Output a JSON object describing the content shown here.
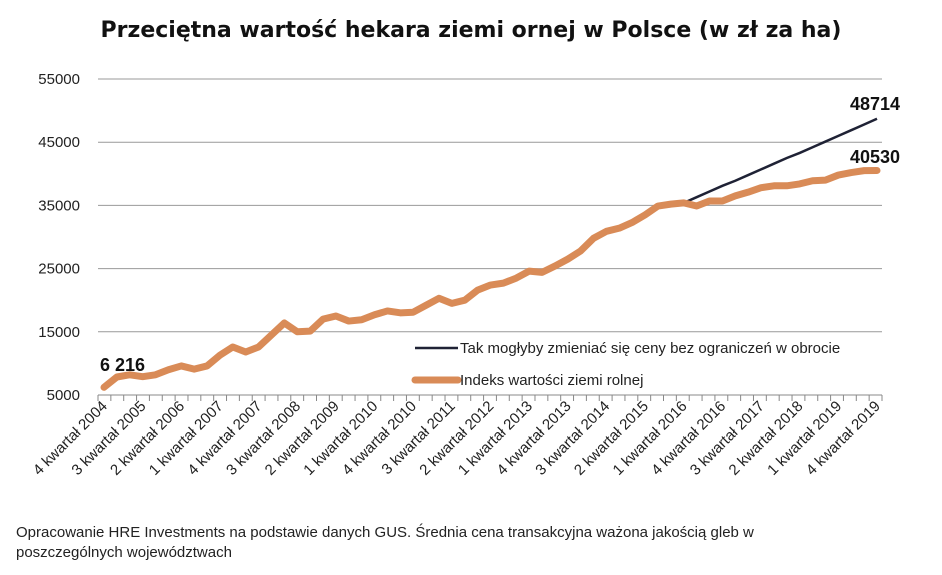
{
  "chart_data": {
    "type": "line",
    "title": "Przeciętna wartość hekara ziemi ornej w Polsce (w zł za ha)",
    "xlabel": "",
    "ylabel": "",
    "ylim": [
      5000,
      55000
    ],
    "yticks": [
      5000,
      15000,
      25000,
      35000,
      45000,
      55000
    ],
    "grid": true,
    "legend_position": "inside-bottom-right",
    "x_tick_labels": [
      "4 kwartał 2004",
      "3 kwartał 2005",
      "2 kwartał 2006",
      "1 kwartał 2007",
      "4 kwartał 2007",
      "3 kwartał 2008",
      "2 kwartał 2009",
      "1 kwartał 2010",
      "4 kwartał 2010",
      "3 kwartał 2011",
      "2 kwartał 2012",
      "1 kwartał 2013",
      "4 kwartał 2013",
      "3 kwartał 2014",
      "2 kwartał 2015",
      "1 kwartał 2016",
      "4 kwartał 2016",
      "3 kwartał 2017",
      "2 kwartał 2018",
      "1 kwartał 2019",
      "4 kwartał 2019"
    ],
    "x_tick_every": 3,
    "series": [
      {
        "name": "Tak mogłyby zmieniać się ceny bez ograniczeń w obrocie",
        "color": "#1f2235",
        "start_index": 45,
        "values": [
          35400,
          36300,
          37200,
          38100,
          38900,
          39800,
          40700,
          41600,
          42500,
          43300,
          44200,
          45100,
          46000,
          46900,
          47800,
          48714
        ],
        "end_label": "48714"
      },
      {
        "name": "Indeks wartości ziemi rolnej",
        "color": "#d98b57",
        "start_index": 0,
        "values": [
          6216,
          7850,
          8200,
          7900,
          8200,
          9000,
          9600,
          9100,
          9600,
          11300,
          12600,
          11800,
          12600,
          14500,
          16400,
          15000,
          15100,
          17000,
          17500,
          16700,
          16900,
          17700,
          18300,
          18000,
          18100,
          19200,
          20300,
          19500,
          20000,
          21600,
          22400,
          22700,
          23500,
          24600,
          24400,
          25400,
          26500,
          27800,
          29800,
          30900,
          31400,
          32300,
          33500,
          34900,
          35200,
          35400,
          34900,
          35700,
          35700,
          36500,
          37100,
          37800,
          38100,
          38100,
          38400,
          38900,
          39000,
          39800,
          40200,
          40500,
          40530
        ],
        "start_label": "6 216",
        "end_label": "40530"
      }
    ]
  },
  "footnote": "Opracowanie HRE Investments na podstawie danych GUS. Średnia cena transakcyjna ważona jakością gleb w poszczególnych województwach"
}
